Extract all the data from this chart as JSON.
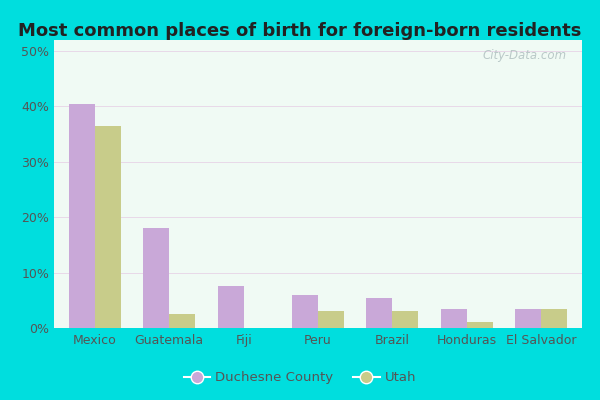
{
  "title": "Most common places of birth for foreign-born residents",
  "categories": [
    "Mexico",
    "Guatemala",
    "Fiji",
    "Peru",
    "Brazil",
    "Honduras",
    "El Salvador"
  ],
  "duchesne_values": [
    40.5,
    18.0,
    7.5,
    6.0,
    5.5,
    3.5,
    3.5
  ],
  "utah_values": [
    36.5,
    2.5,
    0.0,
    3.0,
    3.0,
    1.0,
    3.5
  ],
  "duchesne_color": "#c9a8d8",
  "utah_color": "#c8cc8a",
  "legend_labels": [
    "Duchesne County",
    "Utah"
  ],
  "background_outer": "#00dede",
  "background_inner": "#f0faf4",
  "ylabel_ticks": [
    "0%",
    "10%",
    "20%",
    "30%",
    "40%",
    "50%"
  ],
  "ytick_values": [
    0,
    10,
    20,
    30,
    40,
    50
  ],
  "ylim": [
    0,
    52
  ],
  "bar_width": 0.35,
  "title_fontsize": 13,
  "tick_fontsize": 9,
  "legend_fontsize": 9.5,
  "watermark_text": "City-Data.com"
}
